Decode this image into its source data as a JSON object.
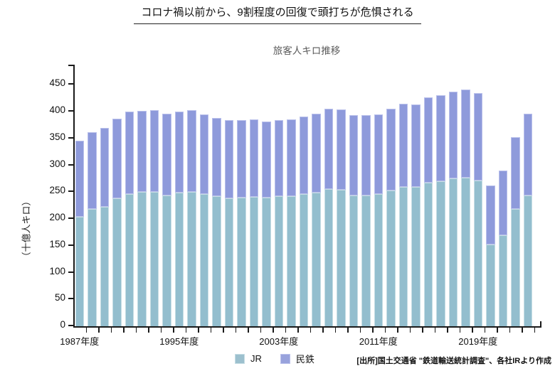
{
  "header": {
    "title": "コロナ禍以前から、9割程度の回復で頭打ちが危惧される"
  },
  "source_note": "[出所]国土交通省 \"鉄道輸送統計調査\"、各社IRより作成",
  "colors": {
    "jr_fill": "#93BECE",
    "jr_border": "#C6DDE4",
    "mintetsu_fill": "#8E9ADB",
    "mintetsu_border": "#B9C0EB",
    "axis": "#1a1a1a",
    "chart_title_color": "#595959",
    "background": "#ffffff"
  },
  "chart_data": {
    "type": "bar",
    "stacked": true,
    "title": "旅客人キロ推移",
    "ylabel": "（十億人キロ）",
    "unit": "十億人キロ",
    "x": [
      1987,
      1988,
      1989,
      1990,
      1991,
      1992,
      1993,
      1994,
      1995,
      1996,
      1997,
      1998,
      1999,
      2000,
      2001,
      2002,
      2003,
      2004,
      2005,
      2006,
      2007,
      2008,
      2009,
      2010,
      2011,
      2012,
      2013,
      2014,
      2015,
      2016,
      2017,
      2018,
      2019,
      2020,
      2021,
      2022,
      2023
    ],
    "x_suffix": "年度",
    "x_tick_labels": [
      {
        "year": 1987,
        "label": "1987年度"
      },
      {
        "year": 1995,
        "label": "1995年度"
      },
      {
        "year": 2003,
        "label": "2003年度"
      },
      {
        "year": 2011,
        "label": "2011年度"
      },
      {
        "year": 2019,
        "label": "2019年度"
      }
    ],
    "ylim": [
      0,
      480
    ],
    "yticks": [
      0,
      50,
      100,
      150,
      200,
      250,
      300,
      350,
      400,
      450
    ],
    "grid": false,
    "legend_position": "bottom-center",
    "series": [
      {
        "name": "JR",
        "color": "#93BECE",
        "values": [
          204,
          218,
          223,
          238,
          246,
          250,
          251,
          244,
          249,
          251,
          246,
          242,
          239,
          240,
          241,
          240,
          242,
          243,
          246,
          249,
          255,
          254,
          244,
          244,
          246,
          253,
          260,
          260,
          267,
          270,
          275,
          277,
          272,
          152,
          170,
          218,
          244
        ]
      },
      {
        "name": "民鉄",
        "color": "#8E9ADB",
        "values": [
          142,
          144,
          146,
          149,
          154,
          152,
          152,
          152,
          151,
          152,
          149,
          146,
          145,
          144,
          144,
          142,
          142,
          142,
          145,
          147,
          150,
          150,
          150,
          149,
          149,
          152,
          155,
          153,
          160,
          161,
          162,
          164,
          163,
          110,
          120,
          134,
          152
        ]
      }
    ],
    "totals": [
      346,
      362,
      369,
      387,
      400,
      402,
      403,
      396,
      400,
      403,
      395,
      388,
      384,
      384,
      385,
      382,
      384,
      385,
      391,
      396,
      405,
      404,
      394,
      393,
      395,
      405,
      415,
      413,
      427,
      431,
      437,
      441,
      435,
      262,
      290,
      352,
      396
    ]
  }
}
